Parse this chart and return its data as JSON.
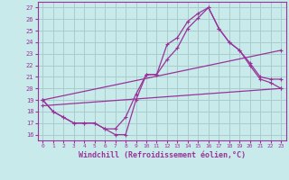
{
  "background_color": "#c8eaea",
  "grid_color": "#aacccc",
  "line_color": "#993399",
  "xlabel": "Windchill (Refroidissement éolien,°C)",
  "yticks": [
    16,
    17,
    18,
    19,
    20,
    21,
    22,
    23,
    24,
    25,
    26,
    27
  ],
  "xticks": [
    0,
    1,
    2,
    3,
    4,
    5,
    6,
    7,
    8,
    9,
    10,
    11,
    12,
    13,
    14,
    15,
    16,
    17,
    18,
    19,
    20,
    21,
    22,
    23
  ],
  "xlim": [
    -0.5,
    23.5
  ],
  "ylim": [
    15.5,
    27.5
  ],
  "line1_x": [
    0,
    1,
    2,
    3,
    4,
    5,
    6,
    7,
    8,
    9,
    10,
    11,
    12,
    13,
    14,
    15,
    16,
    17,
    18,
    19,
    20,
    21,
    22,
    23
  ],
  "line1_y": [
    19,
    18,
    17.5,
    17,
    17,
    17,
    16.5,
    16,
    16,
    19,
    21.2,
    21.2,
    23.8,
    24.4,
    25.8,
    26.5,
    27.0,
    25.2,
    24.0,
    23.3,
    22.2,
    21.0,
    20.8,
    20.8
  ],
  "line2_x": [
    0,
    1,
    2,
    3,
    4,
    5,
    6,
    7,
    8,
    9,
    10,
    11,
    12,
    13,
    14,
    15,
    16,
    17,
    18,
    19,
    20,
    21,
    22,
    23
  ],
  "line2_y": [
    19,
    18,
    17.5,
    17,
    17,
    17,
    16.5,
    16.5,
    17.5,
    19.5,
    21.2,
    21.2,
    22.5,
    23.5,
    25.2,
    26.1,
    27.0,
    25.2,
    24.0,
    23.3,
    22.0,
    20.8,
    20.5,
    20.0
  ],
  "line3_x": [
    0,
    23
  ],
  "line3_y": [
    18.5,
    20.0
  ],
  "line4_x": [
    0,
    23
  ],
  "line4_y": [
    19.0,
    23.3
  ]
}
